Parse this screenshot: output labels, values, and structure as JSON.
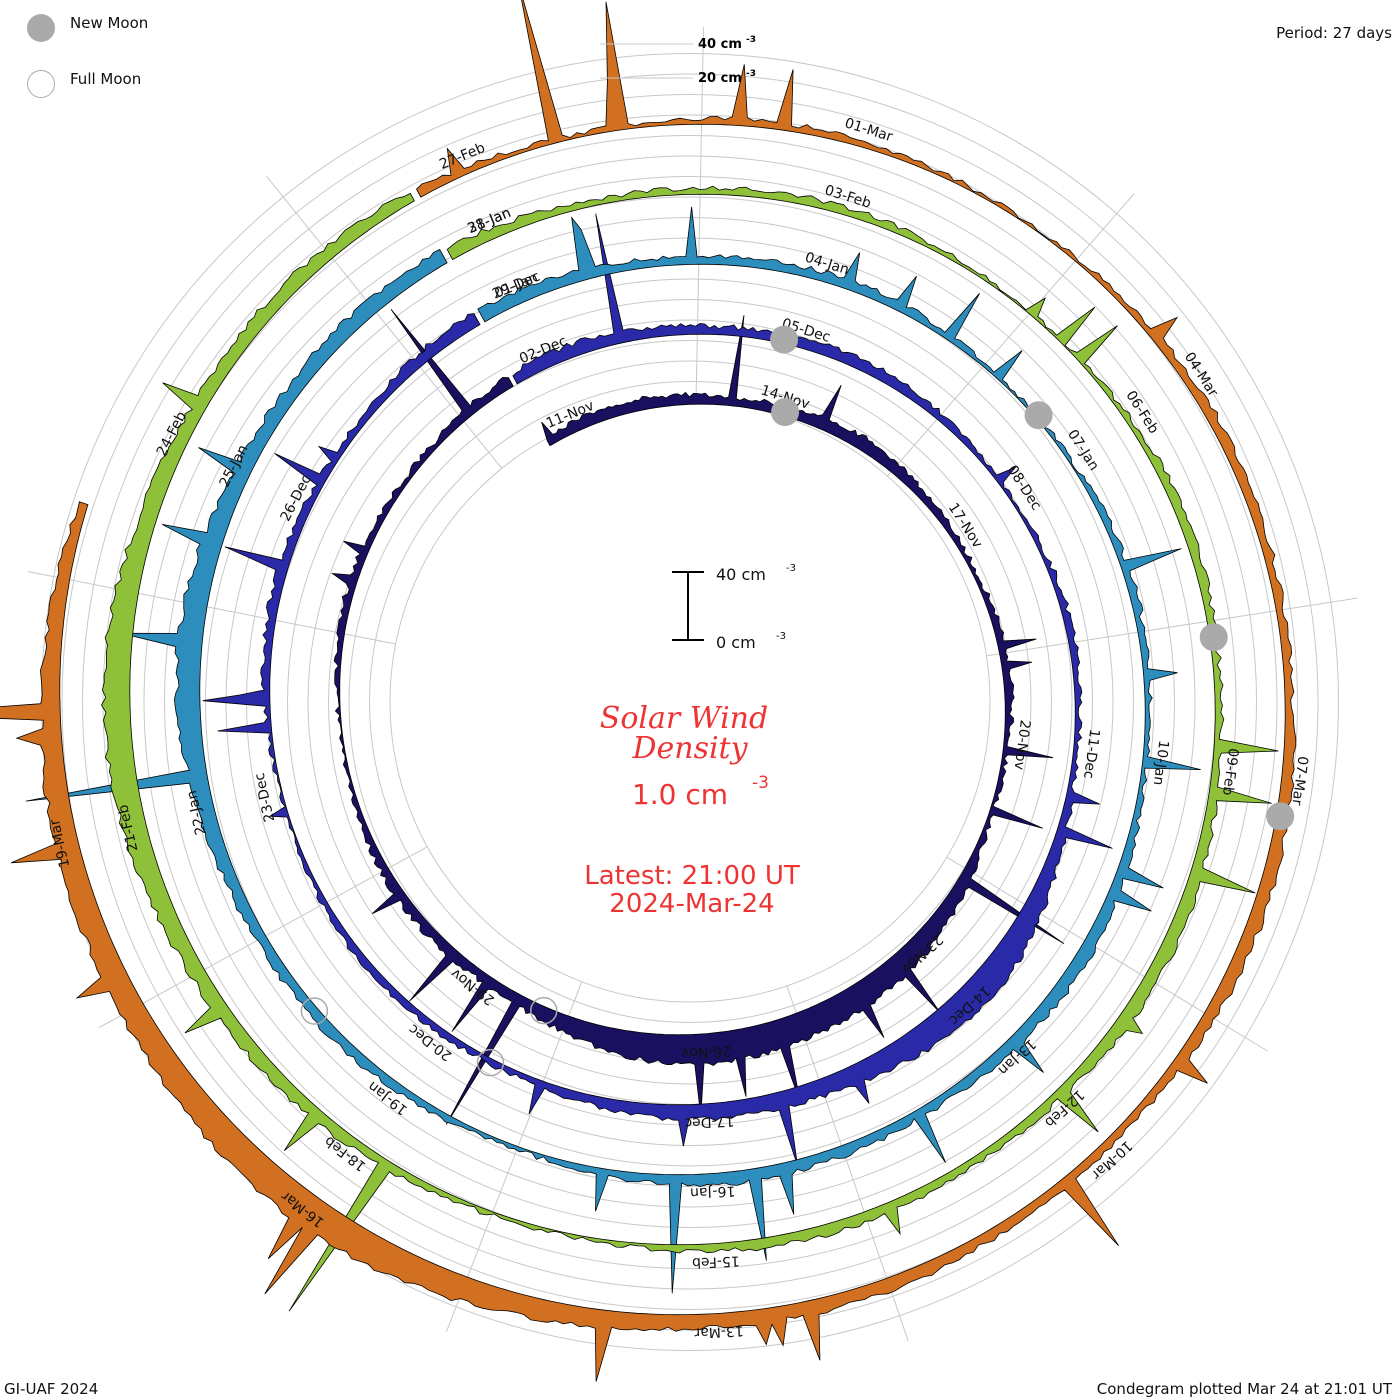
{
  "header": {
    "period": "Period: 27 days",
    "credit": "GI-UAF 2024",
    "plotted": "Condegram plotted Mar 24 at 21:01 UT"
  },
  "legend": {
    "new_moon": "New Moon",
    "full_moon": "Full Moon",
    "new_moon_color": "#aaaaaa",
    "full_moon_color": "#aaaaaa"
  },
  "center": {
    "title_line1": "Solar Wind",
    "title_line2": "Density",
    "value": "1.0 cm",
    "value_exp": "-3",
    "latest": "Latest: 21:00 UT",
    "date": "2024-Mar-24",
    "scale_top": "40 cm",
    "scale_bottom": "0 cm",
    "scale_exp": "-3",
    "title_color": "#ee3333"
  },
  "top_scale": {
    "label_40": "40 cm",
    "label_20": "20 cm",
    "exp": "-3"
  },
  "chart_data": {
    "type": "area",
    "title": "Solar Wind Density",
    "unit": "cm^-3",
    "period_days": 27,
    "rings": [
      {
        "name": "ring-1",
        "color": "#1a1060",
        "dates": [
          "11-Nov",
          "14-Nov",
          "17-Nov",
          "20-Nov",
          "23-Nov",
          "26-Nov",
          "29-Nov"
        ]
      },
      {
        "name": "ring-2",
        "color": "#2a2aa8",
        "dates": [
          "02-Dec",
          "05-Dec",
          "08-Dec",
          "11-Dec",
          "14-Dec",
          "17-Dec",
          "20-Dec",
          "23-Dec",
          "26-Dec",
          "29-Dec"
        ]
      },
      {
        "name": "ring-3",
        "color": "#2d8ebd",
        "dates": [
          "01-Jan",
          "04-Jan",
          "07-Jan",
          "10-Jan",
          "13-Jan",
          "16-Jan",
          "19-Jan",
          "22-Jan",
          "25-Jan",
          "28-Jan"
        ]
      },
      {
        "name": "ring-4",
        "color": "#8fc03a",
        "dates": [
          "31-Jan",
          "03-Feb",
          "06-Feb",
          "09-Feb",
          "12-Feb",
          "15-Feb",
          "18-Feb",
          "21-Feb",
          "24-Feb"
        ]
      },
      {
        "name": "ring-5",
        "color": "#d07020",
        "dates": [
          "27-Feb",
          "01-Mar",
          "04-Mar",
          "07-Mar",
          "10-Mar",
          "13-Mar",
          "16-Mar",
          "19-Mar"
        ]
      }
    ],
    "moons": {
      "new": [
        "New Moon 13-Nov",
        "New Moon 12-Dec",
        "New Moon 11-Jan",
        "New Moon 09-Feb",
        "New Moon 10-Mar"
      ],
      "full": [
        "Full Moon 27-Nov",
        "Full Moon 27-Dec",
        "Full Moon 25-Jan"
      ]
    },
    "scale_max": 40,
    "latest_value": 1.0
  }
}
